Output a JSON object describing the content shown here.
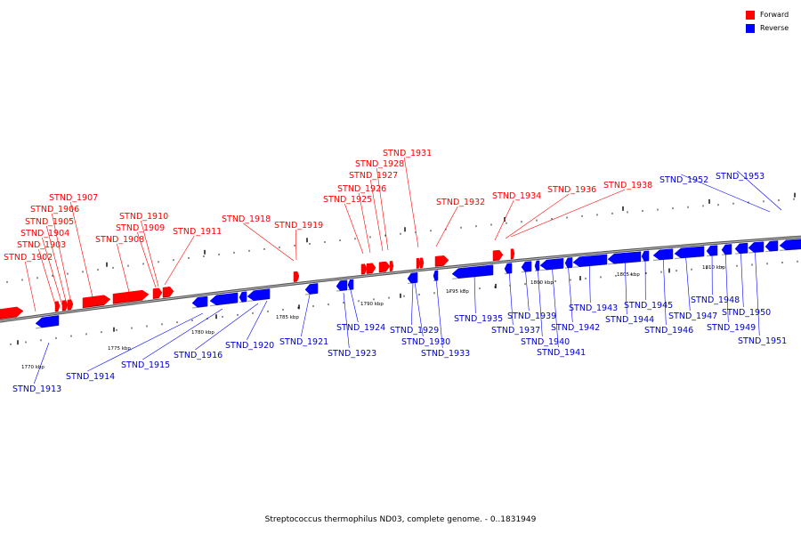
{
  "legend": {
    "forward": {
      "label": "Forward",
      "color": "#ff0000"
    },
    "reverse": {
      "label": "Reverse",
      "color": "#0000ff"
    }
  },
  "caption": "Streptococcus thermophilus ND03, complete genome. - 0..1831949",
  "scale_labels": [
    "1770 kbp",
    "1775 kbp",
    "1780 kbp",
    "1785 kbp",
    "1790 kbp",
    "1795 kbp",
    "1800 kbp",
    "1805 kbp",
    "1810 kbp"
  ],
  "genes_forward": [
    "STND_1902",
    "STND_1903",
    "STND_1904",
    "STND_1905",
    "STND_1906",
    "STND_1907",
    "STND_1908",
    "STND_1909",
    "STND_1910",
    "STND_1911",
    "STND_1918",
    "STND_1919",
    "STND_1925",
    "STND_1926",
    "STND_1927",
    "STND_1928",
    "STND_1931",
    "STND_1932",
    "STND_1934",
    "STND_1936",
    "STND_1938"
  ],
  "genes_reverse": [
    "STND_1913",
    "STND_1914",
    "STND_1915",
    "STND_1916",
    "STND_1920",
    "STND_1921",
    "STND_1923",
    "STND_1924",
    "STND_1929",
    "STND_1930",
    "STND_1933",
    "STND_1935",
    "STND_1937",
    "STND_1939",
    "STND_1940",
    "STND_1941",
    "STND_1942",
    "STND_1943",
    "STND_1944",
    "STND_1945",
    "STND_1946",
    "STND_1947",
    "STND_1948",
    "STND_1949",
    "STND_1950",
    "STND_1951",
    "STND_1952",
    "STND_1953"
  ]
}
